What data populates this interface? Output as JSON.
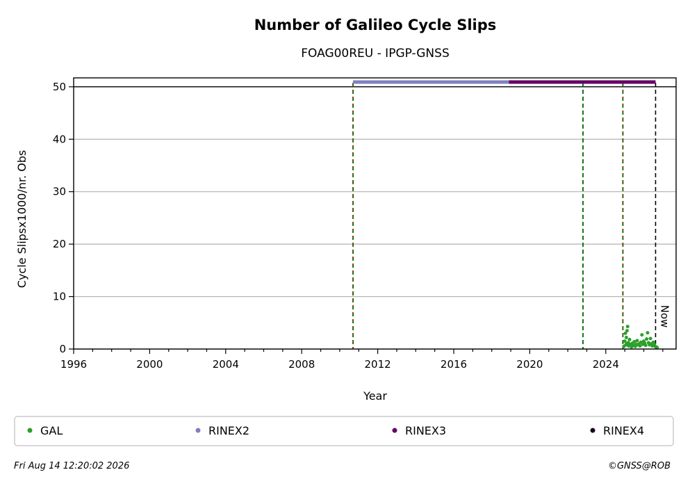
{
  "chart_data": {
    "type": "scatter",
    "title": "Number of Galileo Cycle Slips",
    "subtitle": "FOAG00REU - IPGP-GNSS",
    "xlabel": "Year",
    "ylabel": "Cycle Slipsx1000/nr. Obs",
    "xlim": [
      1996,
      2027.7
    ],
    "ylim": [
      0,
      51.7
    ],
    "x_ticks": [
      1996,
      2000,
      2004,
      2008,
      2012,
      2016,
      2020,
      2024
    ],
    "y_ticks": [
      0,
      10,
      20,
      30,
      40,
      50
    ],
    "grid": "y",
    "reference_line_y": 50,
    "series": [
      {
        "name": "GAL",
        "color": "#2ca02c",
        "points": [
          [
            2024.95,
            0.5
          ],
          [
            2025.0,
            1.5
          ],
          [
            2025.03,
            3.0
          ],
          [
            2025.05,
            0.8
          ],
          [
            2025.08,
            2.2
          ],
          [
            2025.1,
            1.0
          ],
          [
            2025.12,
            3.5
          ],
          [
            2025.15,
            4.3
          ],
          [
            2025.18,
            1.2
          ],
          [
            2025.2,
            0.6
          ],
          [
            2025.25,
            1.8
          ],
          [
            2025.3,
            0.9
          ],
          [
            2025.35,
            0.4
          ],
          [
            2025.4,
            1.1
          ],
          [
            2025.45,
            0.7
          ],
          [
            2025.5,
            1.4
          ],
          [
            2025.55,
            0.5
          ],
          [
            2025.6,
            0.9
          ],
          [
            2025.65,
            1.6
          ],
          [
            2025.7,
            0.8
          ],
          [
            2025.75,
            1.0
          ],
          [
            2025.8,
            0.6
          ],
          [
            2025.85,
            1.3
          ],
          [
            2025.9,
            2.7
          ],
          [
            2025.95,
            0.9
          ],
          [
            2026.0,
            1.5
          ],
          [
            2026.05,
            1.1
          ],
          [
            2026.1,
            0.7
          ],
          [
            2026.15,
            1.9
          ],
          [
            2026.2,
            3.1
          ],
          [
            2026.25,
            1.2
          ],
          [
            2026.3,
            0.8
          ],
          [
            2026.35,
            2.0
          ],
          [
            2026.4,
            1.0
          ],
          [
            2026.45,
            0.6
          ],
          [
            2026.5,
            1.3
          ],
          [
            2026.55,
            0.9
          ],
          [
            2026.6,
            0.5
          ],
          [
            2026.65,
            0.4
          ],
          [
            2026.7,
            0.3
          ]
        ]
      },
      {
        "name": "RINEX2",
        "color": "#8080c0",
        "range": [
          2010.7,
          2018.9
        ],
        "y": 50.9
      },
      {
        "name": "RINEX3",
        "color": "#660066",
        "range": [
          2018.9,
          2026.62
        ],
        "y": 50.9
      },
      {
        "name": "RINEX4",
        "color": "#1a0020"
      }
    ],
    "vertical_lines": [
      {
        "x": 2010.7,
        "style": "green-red-dashed"
      },
      {
        "x": 2022.8,
        "style": "green-dashed"
      },
      {
        "x": 2024.9,
        "style": "green-red-dashed"
      },
      {
        "x": 2026.62,
        "style": "black-dashed",
        "label": "Now"
      }
    ],
    "legend_placement": "bottom"
  },
  "footer": {
    "timestamp": "Fri Aug 14 12:20:02 2026",
    "credit": "©GNSS@ROB"
  }
}
